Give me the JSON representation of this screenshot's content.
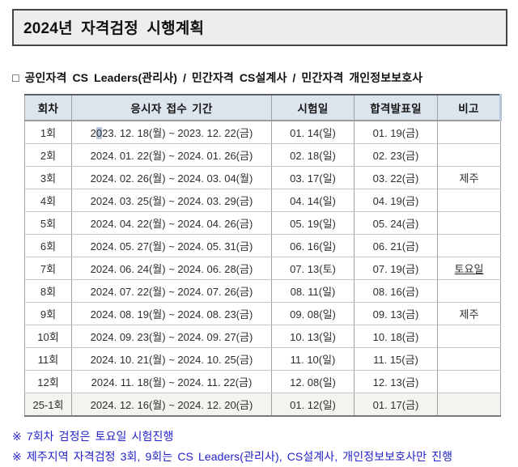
{
  "page": {
    "title": "2024년 자격검정 시행계획",
    "subtitle": "□ 공인자격 CS Leaders(관리사) / 민간자격 CS설계사 / 민간자격 개인정보보호사"
  },
  "colors": {
    "header_bg": "#dce4ee",
    "title_bg": "#ededed",
    "note_blue": "#2323c8",
    "shaded_row_bg": "#f4f3ef",
    "char_hl": "#b3c6dc"
  },
  "table": {
    "headers": [
      "회차",
      "응시자 접수 기간",
      "시험일",
      "합격발표일",
      "비고"
    ],
    "rows": [
      {
        "round": "1회",
        "period": "2023. 12. 18(월) ~ 2023. 12. 22(금)",
        "exam": "01. 14(일)",
        "result": "01. 19(금)",
        "note": "",
        "period_char_highlight": 1
      },
      {
        "round": "2회",
        "period": "2024. 01. 22(월) ~ 2024. 01. 26(금)",
        "exam": "02. 18(일)",
        "result": "02. 23(금)",
        "note": ""
      },
      {
        "round": "3회",
        "period": "2024. 02. 26(월) ~ 2024. 03. 04(월)",
        "exam": "03. 17(일)",
        "result": "03. 22(금)",
        "note": "제주"
      },
      {
        "round": "4회",
        "period": "2024. 03. 25(월) ~ 2024. 03. 29(금)",
        "exam": "04. 14(일)",
        "result": "04. 19(금)",
        "note": ""
      },
      {
        "round": "5회",
        "period": "2024. 04. 22(월) ~ 2024. 04. 26(금)",
        "exam": "05. 19(일)",
        "result": "05. 24(금)",
        "note": ""
      },
      {
        "round": "6회",
        "period": "2024. 05. 27(월) ~ 2024. 05. 31(금)",
        "exam": "06. 16(일)",
        "result": "06. 21(금)",
        "note": ""
      },
      {
        "round": "7회",
        "period": "2024. 06. 24(월) ~ 2024. 06. 28(금)",
        "exam": "07. 13(토)",
        "result": "07. 19(금)",
        "note": "토요일",
        "note_style": "highlight-blue"
      },
      {
        "round": "8회",
        "period": "2024. 07. 22(월) ~ 2024. 07. 26(금)",
        "exam": "08. 11(일)",
        "result": "08. 16(금)",
        "note": ""
      },
      {
        "round": "9회",
        "period": "2024. 08. 19(월) ~ 2024. 08. 23(금)",
        "exam": "09. 08(일)",
        "result": "09. 13(금)",
        "note": "제주"
      },
      {
        "round": "10회",
        "period": "2024. 09. 23(월) ~ 2024. 09. 27(금)",
        "exam": "10. 13(일)",
        "result": "10. 18(금)",
        "note": ""
      },
      {
        "round": "11회",
        "period": "2024. 10. 21(월) ~ 2024. 10. 25(금)",
        "exam": "11. 10(일)",
        "result": "11. 15(금)",
        "note": ""
      },
      {
        "round": "12회",
        "period": "2024. 11. 18(월) ~ 2024. 11. 22(금)",
        "exam": "12. 08(일)",
        "result": "12. 13(금)",
        "note": ""
      },
      {
        "round": "25-1회",
        "period": "2024. 12. 16(월) ~ 2024. 12. 20(금)",
        "exam": "01. 12(일)",
        "result": "01. 17(금)",
        "note": "",
        "shaded": true
      }
    ]
  },
  "footnotes": [
    "※ 7회차 검정은 토요일 시험진행",
    "※ 제주지역 자격검정 3회, 9회는 CS Leaders(관리사), CS설계사, 개인정보보호사만 진행"
  ]
}
